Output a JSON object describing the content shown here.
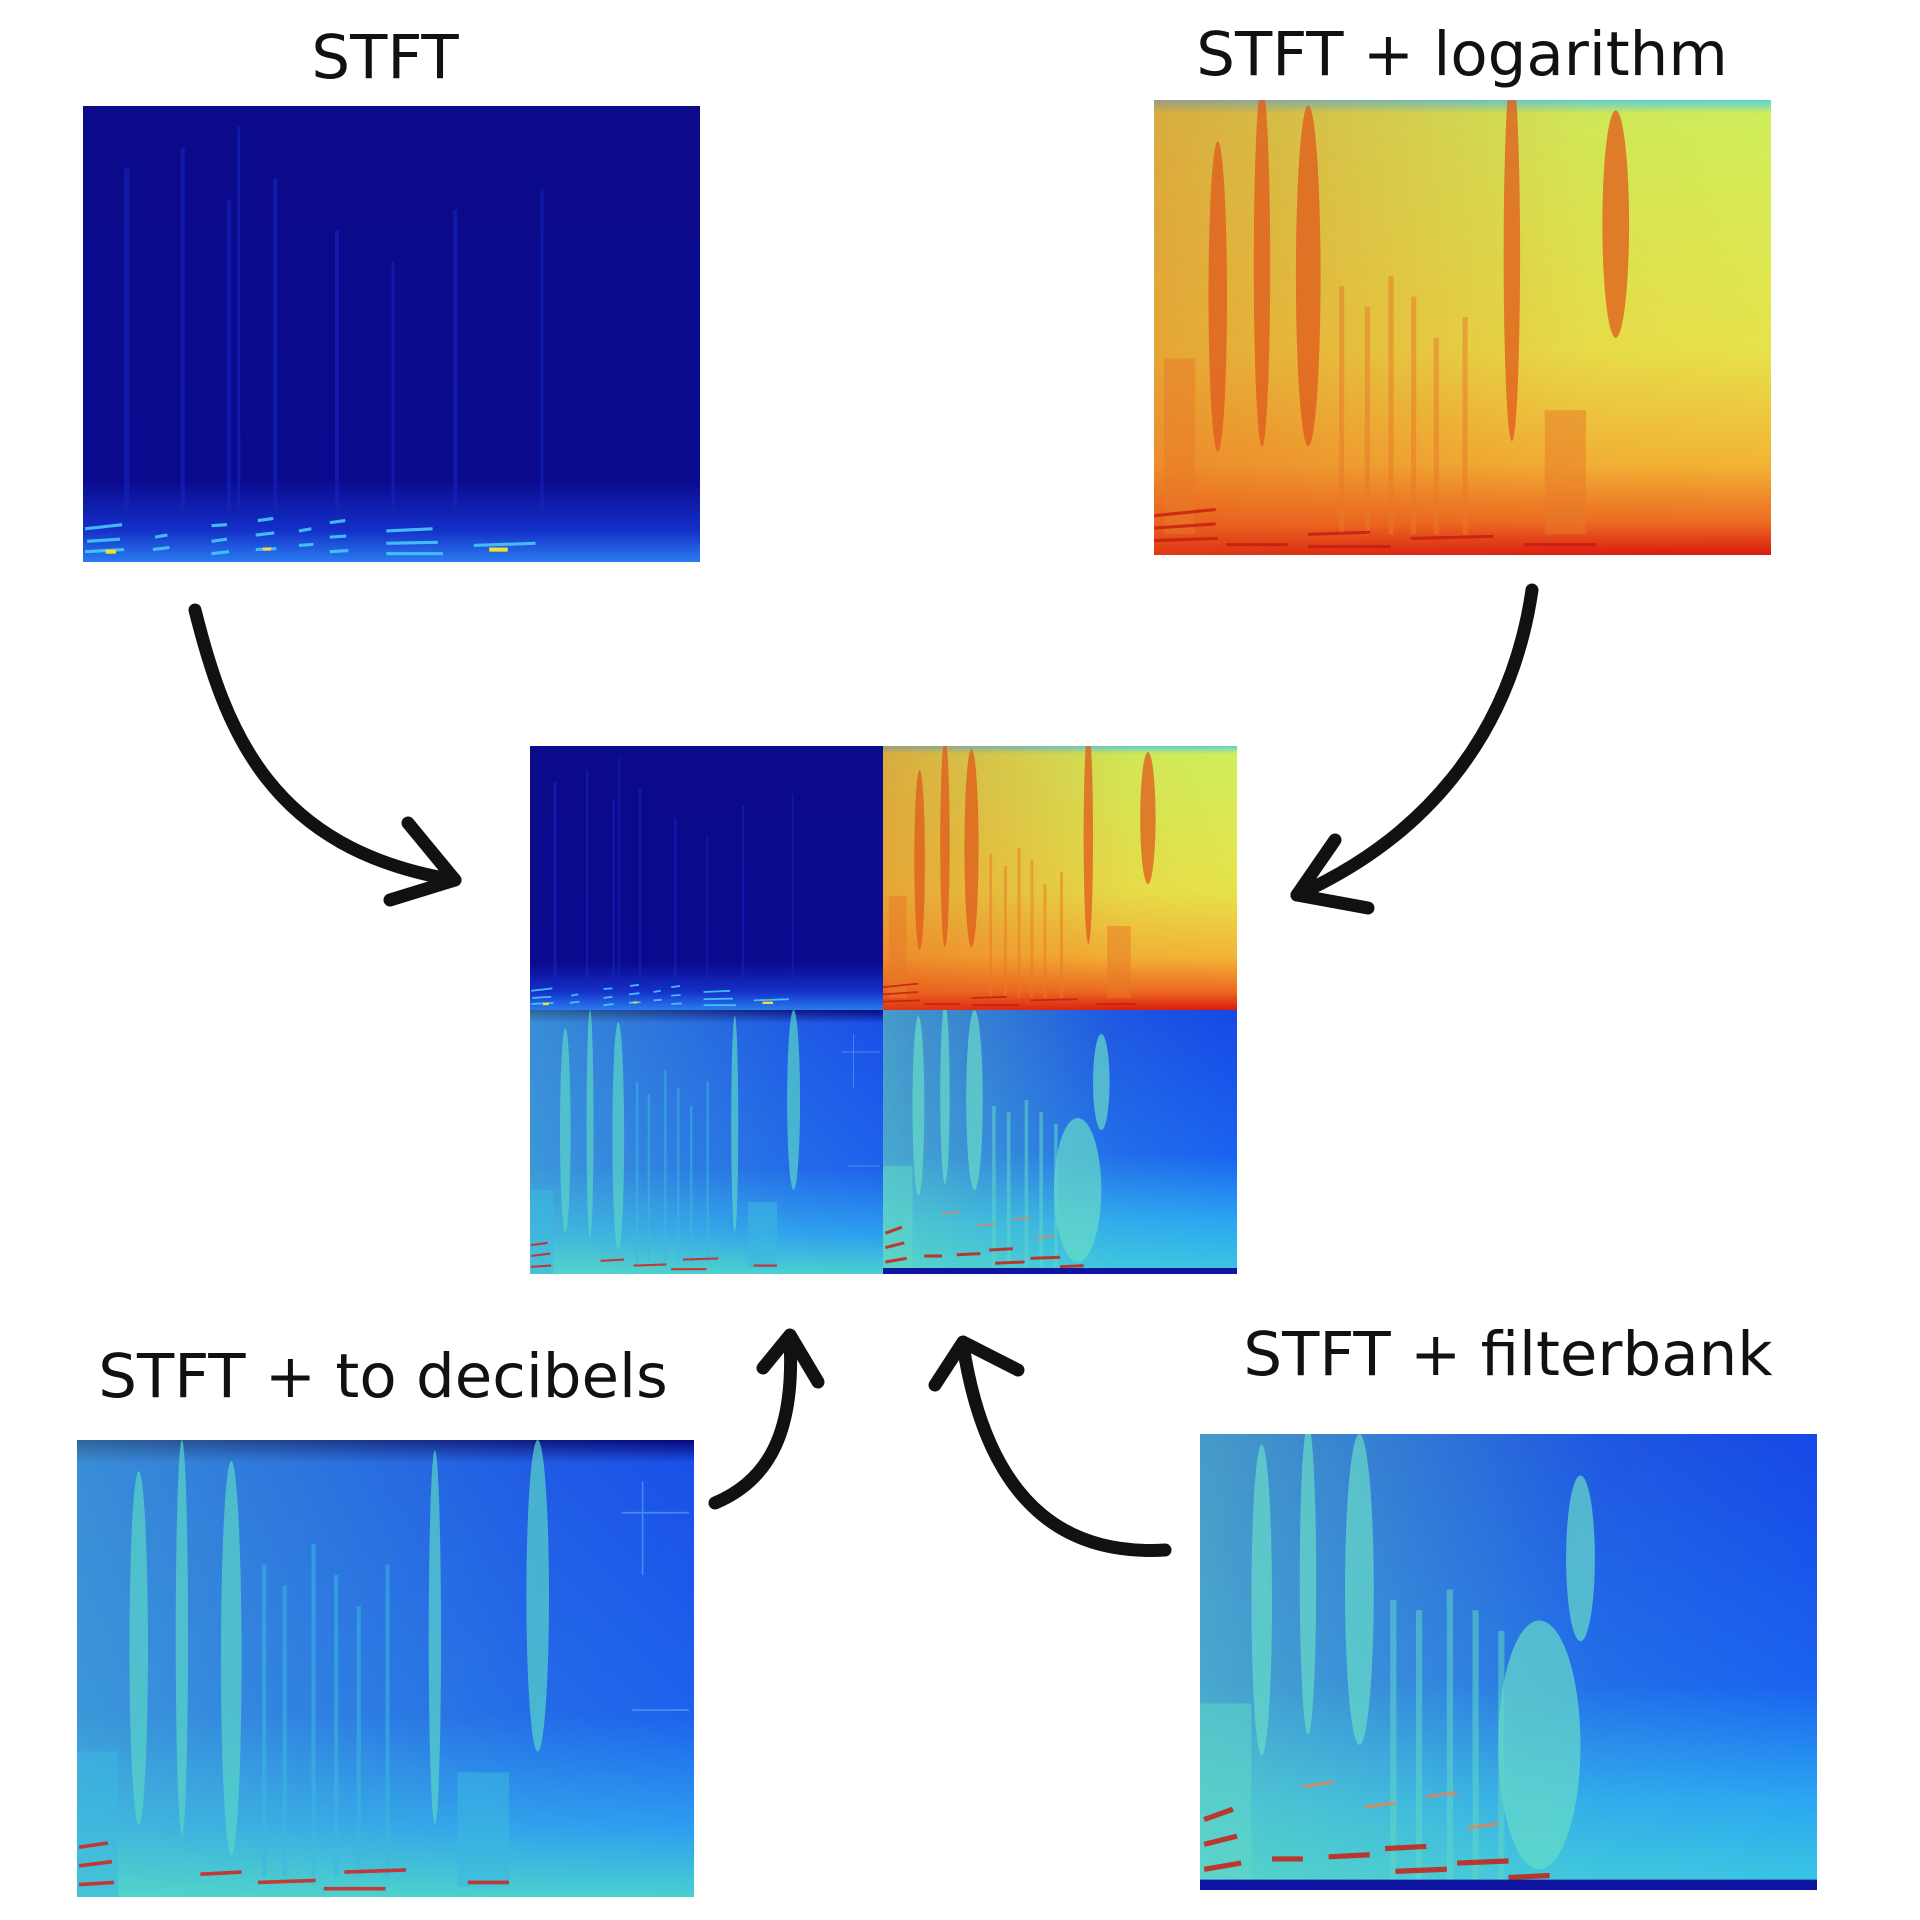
{
  "labels": {
    "stft": "STFT",
    "log": "STFT + logarithm",
    "db": "STFT + to decibels",
    "fb": "STFT + filterbank"
  },
  "colors": {
    "background": "#ffffff",
    "text": "#111111",
    "arrow": "#111111",
    "colormap": "jet"
  },
  "panels": {
    "stft": {
      "base": "#0a0a8a",
      "stripe": "#1826c8",
      "low": "#27b6ff"
    },
    "log": {
      "base": "#d8f04a",
      "stripe": "#e0601a",
      "low": "#d81a10"
    },
    "db": {
      "base": "#1a46e6",
      "stripe": "#56d8c8",
      "low": "#d2221a"
    },
    "fb": {
      "base": "#1838ea",
      "stripe": "#66d8c0",
      "low": "#c81e12"
    }
  }
}
